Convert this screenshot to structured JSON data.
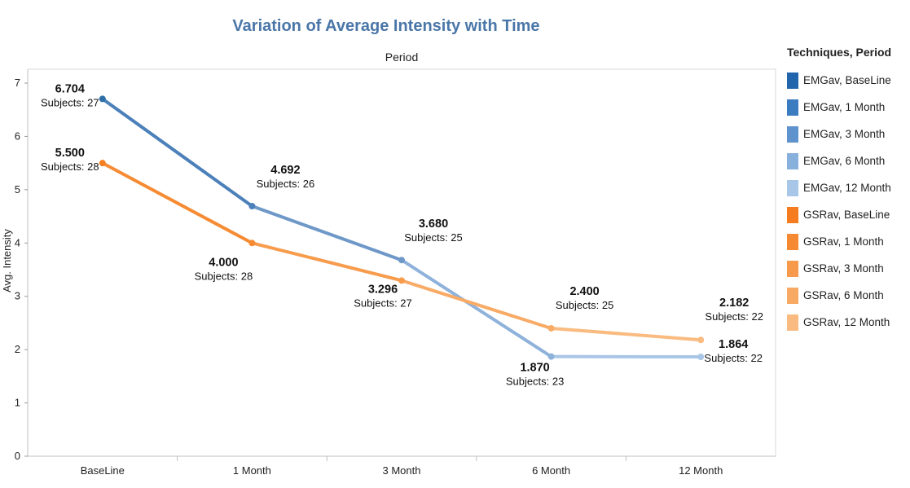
{
  "chart_data": {
    "type": "line",
    "title": "Variation of Average Intensity with Time",
    "x_header": "Period",
    "ylabel": "Avg. Intensity",
    "categories": [
      "BaseLine",
      "1 Month",
      "3 Month",
      "6 Month",
      "12 Month"
    ],
    "ylim": [
      0,
      7
    ],
    "yticks": [
      0,
      1,
      2,
      3,
      4,
      5,
      6,
      7
    ],
    "grid": false,
    "series": [
      {
        "technique": "EMGav",
        "values": [
          6.704,
          4.692,
          3.68,
          1.87,
          1.864
        ],
        "value_labels": [
          "6.704",
          "4.692",
          "3.680",
          "1.870",
          "1.864"
        ],
        "subjects": [
          "Subjects: 27",
          "Subjects: 26",
          "Subjects: 25",
          "Subjects: 23",
          "Subjects: 22"
        ],
        "colors": [
          "#2f6fa8",
          "#4b80ba",
          "#6e98c8",
          "#8fb2db",
          "#a9c6e6"
        ]
      },
      {
        "technique": "GSRav",
        "values": [
          5.5,
          4.0,
          3.296,
          2.4,
          2.182
        ],
        "value_labels": [
          "5.500",
          "4.000",
          "3.296",
          "2.400",
          "2.182"
        ],
        "subjects": [
          "Subjects: 28",
          "Subjects: 28",
          "Subjects: 27",
          "Subjects: 25",
          "Subjects: 22"
        ],
        "colors": [
          "#f57f20",
          "#f68b33",
          "#f79b4c",
          "#f8ab66",
          "#f9bb80"
        ]
      }
    ],
    "legend": {
      "position": "right",
      "title": "Techniques, Period",
      "items": [
        {
          "label": "EMGav, BaseLine",
          "color": "#2166ac"
        },
        {
          "label": "EMGav, 1 Month",
          "color": "#3b7bbf"
        },
        {
          "label": "EMGav, 3 Month",
          "color": "#5e93cd"
        },
        {
          "label": "EMGav, 6 Month",
          "color": "#88b0dc"
        },
        {
          "label": "EMGav, 12 Month",
          "color": "#a8c6e8"
        },
        {
          "label": "GSRav, BaseLine",
          "color": "#f57c1f"
        },
        {
          "label": "GSRav, 1 Month",
          "color": "#f68a33"
        },
        {
          "label": "GSRav, 3 Month",
          "color": "#f79a4b"
        },
        {
          "label": "GSRav, 6 Month",
          "color": "#f8a964"
        },
        {
          "label": "GSRav, 12 Month",
          "color": "#f9bb80"
        }
      ]
    }
  }
}
